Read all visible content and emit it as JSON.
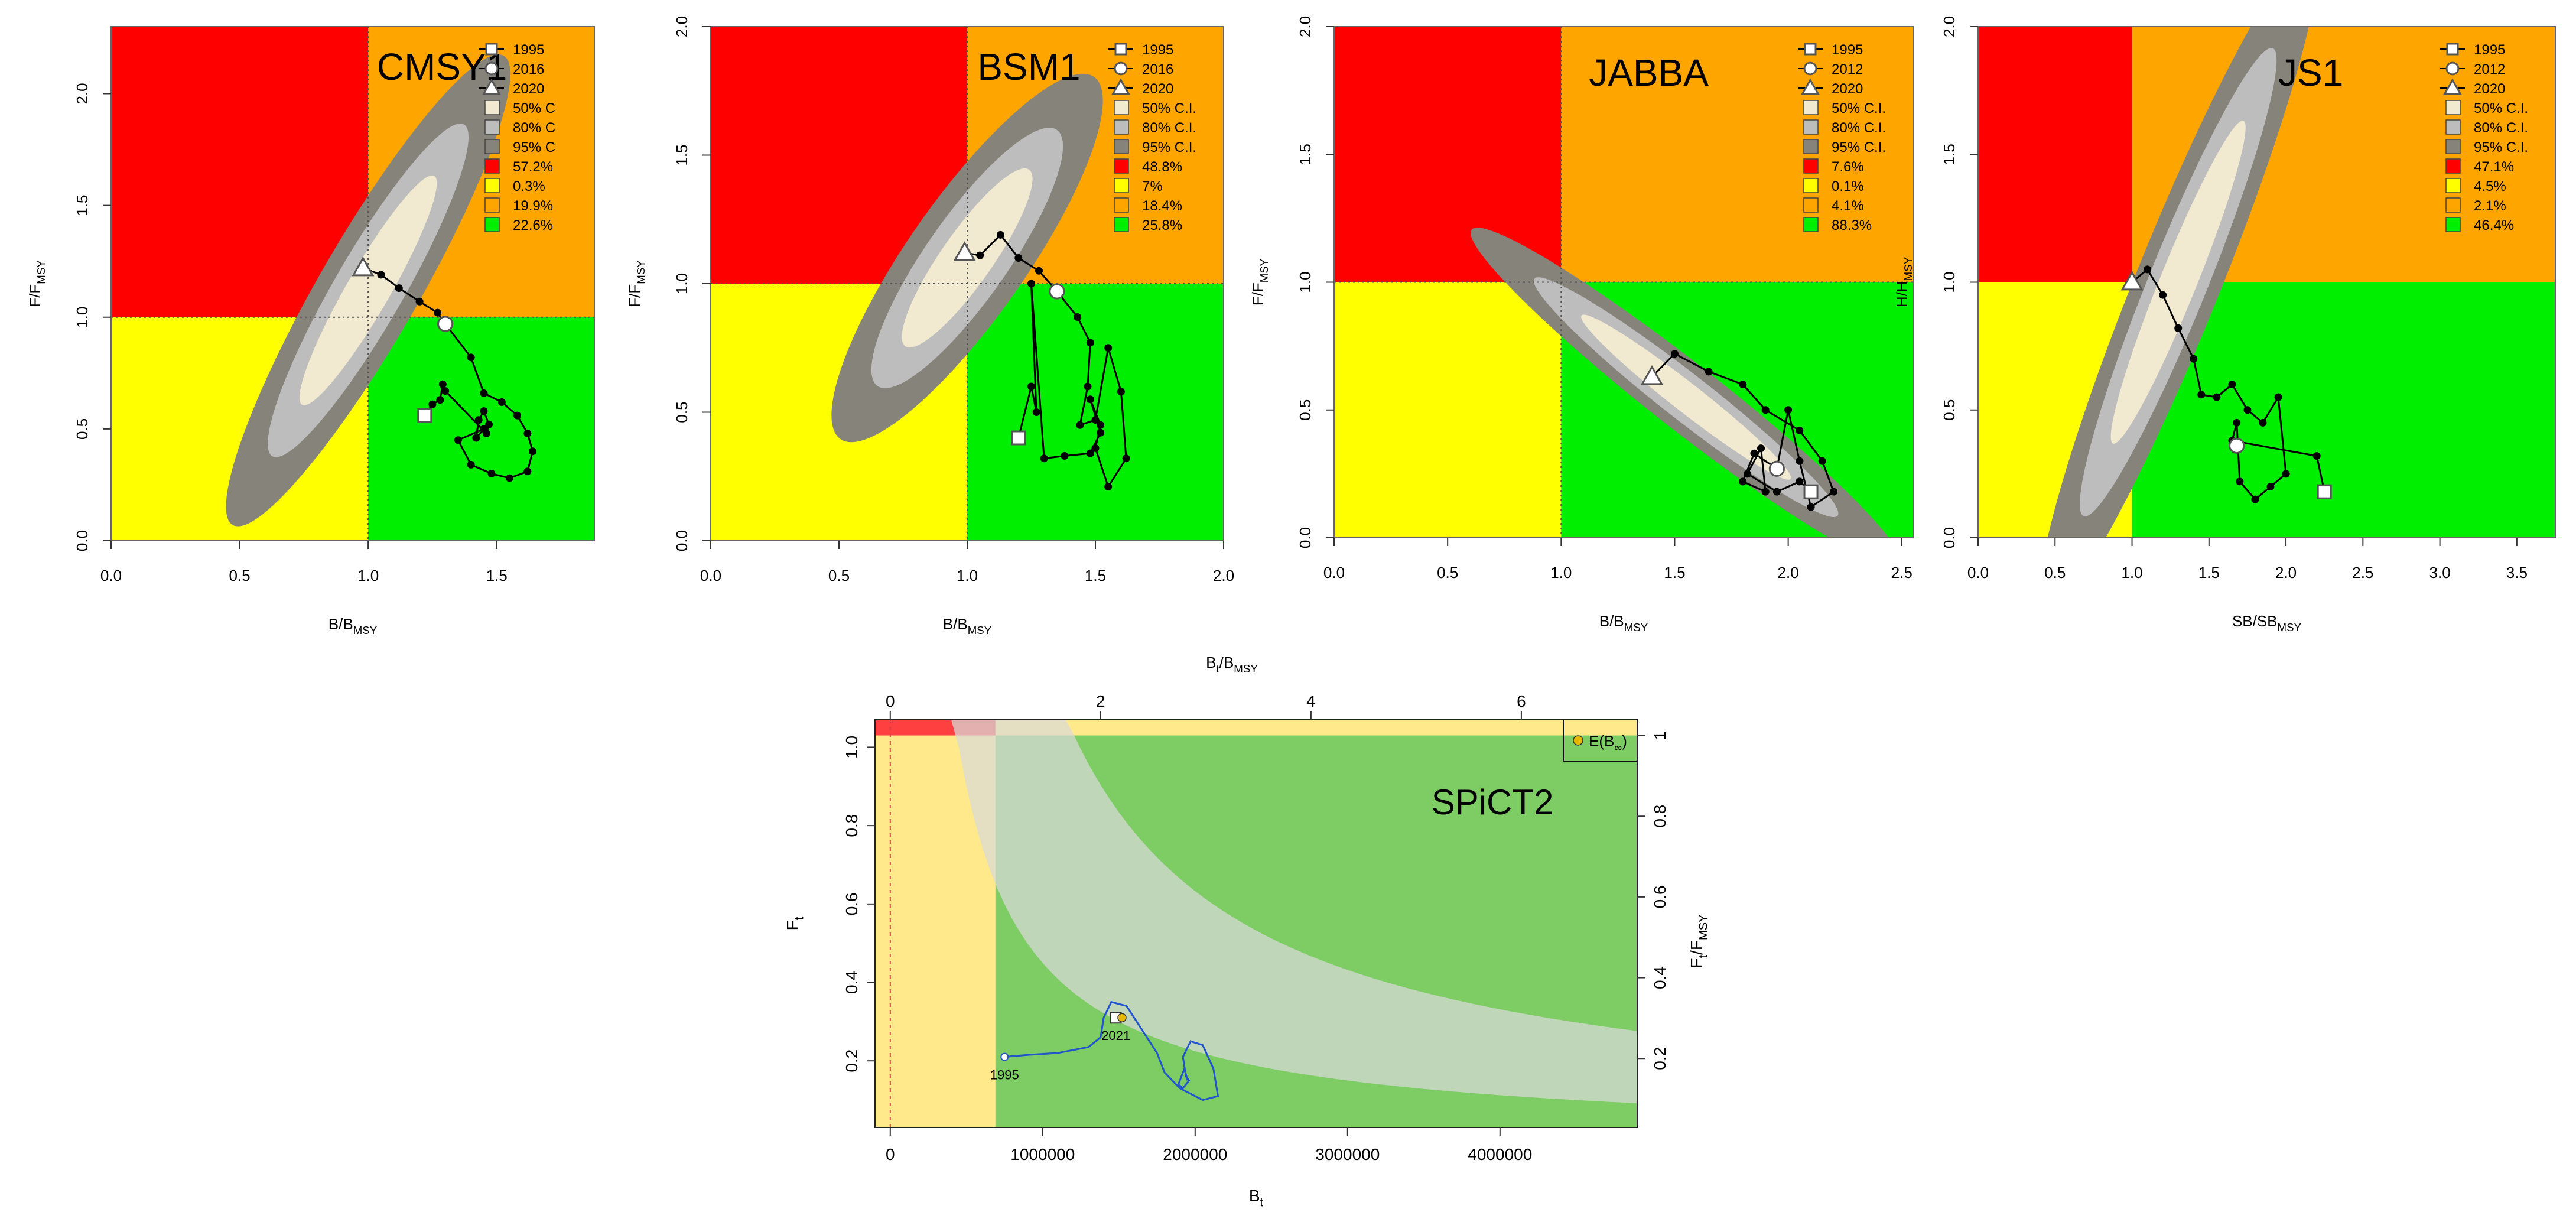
{
  "colors": {
    "red": "#ff0000",
    "yellow": "#ffff00",
    "orange": "#ffa500",
    "green": "#00ee00",
    "ci50": "#f1ead0",
    "ci80": "#bdbdbd",
    "ci95": "#85837a",
    "spict_green": "#7dcc64",
    "spict_yellow": "#ffe98a",
    "spict_red": "#ff4040",
    "spict_band": "#c6d6b8",
    "spict_track": "#2255cc"
  },
  "chart_data": [
    {
      "id": "cmsy1",
      "type": "scatter",
      "title": "CMSY1",
      "xlabel": "B/B",
      "xlabel_sub": "MSY",
      "ylabel": "F/F",
      "ylabel_sub": "MSY",
      "xlim": [
        0,
        1.88
      ],
      "ylim": [
        0,
        2.3
      ],
      "xticks": [
        "0.0",
        "0.5",
        "1.0",
        "1.5"
      ],
      "yticks": [
        "0.0",
        "0.5",
        "1.0",
        "1.5",
        "2.0"
      ],
      "dotted_ref": true,
      "ellipse": {
        "cx": 1.0,
        "cy": 1.12,
        "angle_deg": -60,
        "core_half_axes": [
          0.55,
          0.09
        ]
      },
      "trajectory": [
        [
          1.3,
          0.97
        ],
        [
          1.4,
          0.82
        ],
        [
          1.45,
          0.66
        ],
        [
          1.52,
          0.62
        ],
        [
          1.58,
          0.56
        ],
        [
          1.62,
          0.48
        ],
        [
          1.64,
          0.4
        ],
        [
          1.62,
          0.31
        ],
        [
          1.55,
          0.28
        ],
        [
          1.48,
          0.3
        ],
        [
          1.4,
          0.34
        ],
        [
          1.35,
          0.45
        ],
        [
          1.45,
          0.5
        ],
        [
          1.42,
          0.46
        ],
        [
          1.43,
          0.54
        ],
        [
          1.45,
          0.58
        ],
        [
          1.47,
          0.52
        ],
        [
          1.46,
          0.48
        ],
        [
          1.3,
          0.67
        ],
        [
          1.29,
          0.7
        ],
        [
          1.28,
          0.63
        ],
        [
          1.25,
          0.61
        ],
        [
          1.22,
          0.56
        ]
      ],
      "traj_ext": [
        [
          0.98,
          1.22
        ],
        [
          1.05,
          1.19
        ],
        [
          1.12,
          1.13
        ],
        [
          1.2,
          1.07
        ],
        [
          1.27,
          1.02
        ],
        [
          1.3,
          0.97
        ]
      ],
      "markers": [
        {
          "label": "1995",
          "shape": "square",
          "x": 1.22,
          "y": 0.56
        },
        {
          "label": "2016",
          "shape": "circle",
          "x": 1.3,
          "y": 0.97
        },
        {
          "label": "2020",
          "shape": "triangle",
          "x": 0.98,
          "y": 1.22
        }
      ],
      "legend": [
        {
          "shape": "line-square",
          "text": "1995"
        },
        {
          "shape": "line-circle",
          "text": "2016"
        },
        {
          "shape": "line-triangle",
          "text": "2020"
        },
        {
          "shape": "box",
          "color": "ci50",
          "text": "50% C"
        },
        {
          "shape": "box",
          "color": "ci80",
          "text": "80% C"
        },
        {
          "shape": "box",
          "color": "ci95",
          "text": "95% C"
        },
        {
          "shape": "box",
          "color": "red",
          "text": "57.2%"
        },
        {
          "shape": "box",
          "color": "yellow",
          "text": "0.3%"
        },
        {
          "shape": "box",
          "color": "orange",
          "text": "19.9%"
        },
        {
          "shape": "box",
          "color": "green",
          "text": "22.6%"
        }
      ]
    },
    {
      "id": "bsm1",
      "type": "scatter",
      "title": "BSM1",
      "xlabel": "B/B",
      "xlabel_sub": "MSY",
      "ylabel": "F/F",
      "ylabel_sub": "MSY",
      "xlim": [
        0,
        2.0
      ],
      "ylim": [
        0,
        2.0
      ],
      "xticks": [
        "0.0",
        "0.5",
        "1.0",
        "1.5",
        "2.0"
      ],
      "yticks": [
        "0.0",
        "0.5",
        "1.0",
        "1.5",
        "2.0"
      ],
      "dotted_ref": true,
      "ellipse": {
        "cx": 1.0,
        "cy": 1.1,
        "angle_deg": -55,
        "core_half_axes": [
          0.42,
          0.1
        ]
      },
      "trajectory": [
        [
          1.35,
          0.97
        ],
        [
          1.43,
          0.87
        ],
        [
          1.48,
          0.77
        ],
        [
          1.47,
          0.6
        ],
        [
          1.44,
          0.45
        ],
        [
          1.5,
          0.47
        ],
        [
          1.55,
          0.75
        ],
        [
          1.6,
          0.58
        ],
        [
          1.62,
          0.32
        ],
        [
          1.55,
          0.21
        ],
        [
          1.5,
          0.36
        ],
        [
          1.52,
          0.45
        ],
        [
          1.48,
          0.55
        ],
        [
          1.52,
          0.42
        ],
        [
          1.48,
          0.34
        ],
        [
          1.38,
          0.33
        ],
        [
          1.3,
          0.32
        ],
        [
          1.25,
          1.0
        ],
        [
          1.27,
          0.5
        ],
        [
          1.25,
          0.6
        ],
        [
          1.2,
          0.4
        ]
      ],
      "traj_ext": [
        [
          0.99,
          1.12
        ],
        [
          1.05,
          1.11
        ],
        [
          1.13,
          1.19
        ],
        [
          1.2,
          1.1
        ],
        [
          1.28,
          1.05
        ],
        [
          1.35,
          0.97
        ]
      ],
      "markers": [
        {
          "label": "1995",
          "shape": "square",
          "x": 1.2,
          "y": 0.4
        },
        {
          "label": "2016",
          "shape": "circle",
          "x": 1.35,
          "y": 0.97
        },
        {
          "label": "2020",
          "shape": "triangle",
          "x": 0.99,
          "y": 1.12
        }
      ],
      "legend": [
        {
          "shape": "line-square",
          "text": "1995"
        },
        {
          "shape": "line-circle",
          "text": "2016"
        },
        {
          "shape": "line-triangle",
          "text": "2020"
        },
        {
          "shape": "box",
          "color": "ci50",
          "text": "50% C.I."
        },
        {
          "shape": "box",
          "color": "ci80",
          "text": "80% C.I."
        },
        {
          "shape": "box",
          "color": "ci95",
          "text": "95% C.I."
        },
        {
          "shape": "box",
          "color": "red",
          "text": "48.8%"
        },
        {
          "shape": "box",
          "color": "yellow",
          "text": "7%"
        },
        {
          "shape": "box",
          "color": "orange",
          "text": "18.4%"
        },
        {
          "shape": "box",
          "color": "green",
          "text": "25.8%"
        }
      ]
    },
    {
      "id": "jabba",
      "type": "scatter",
      "title": "JABBA",
      "xlabel": "B/B",
      "xlabel_sub": "MSY",
      "ylabel": "F/F",
      "ylabel_sub": "MSY",
      "xlim": [
        0,
        2.55
      ],
      "ylim": [
        0,
        2.0
      ],
      "xticks": [
        "0.0",
        "0.5",
        "1.0",
        "1.5",
        "2.0",
        "2.5"
      ],
      "yticks": [
        "0.0",
        "0.5",
        "1.0",
        "1.5",
        "2.0"
      ],
      "dotted_ref": true,
      "ellipse": {
        "cx": 1.55,
        "cy": 0.55,
        "angle_deg": 38,
        "core_half_axes": [
          0.55,
          0.06
        ]
      },
      "trajectory": [
        [
          1.4,
          0.63
        ],
        [
          1.5,
          0.72
        ],
        [
          1.65,
          0.65
        ],
        [
          1.8,
          0.6
        ],
        [
          1.9,
          0.5
        ],
        [
          2.05,
          0.42
        ],
        [
          2.15,
          0.3
        ],
        [
          2.2,
          0.18
        ],
        [
          2.1,
          0.12
        ],
        [
          2.05,
          0.3
        ],
        [
          2.0,
          0.5
        ],
        [
          1.95,
          0.27
        ],
        [
          1.85,
          0.33
        ],
        [
          1.8,
          0.22
        ],
        [
          1.9,
          0.18
        ],
        [
          1.88,
          0.35
        ],
        [
          1.82,
          0.25
        ],
        [
          1.95,
          0.18
        ],
        [
          2.05,
          0.22
        ],
        [
          2.1,
          0.18
        ]
      ],
      "traj_ext": [],
      "markers": [
        {
          "label": "1995",
          "shape": "square",
          "x": 2.1,
          "y": 0.18
        },
        {
          "label": "2012",
          "shape": "circle",
          "x": 1.95,
          "y": 0.27
        },
        {
          "label": "2020",
          "shape": "triangle",
          "x": 1.4,
          "y": 0.63
        }
      ],
      "legend": [
        {
          "shape": "line-square",
          "text": "1995"
        },
        {
          "shape": "line-circle",
          "text": "2012"
        },
        {
          "shape": "line-triangle",
          "text": "2020"
        },
        {
          "shape": "box",
          "color": "ci50",
          "text": "50% C.I."
        },
        {
          "shape": "box",
          "color": "ci80",
          "text": "80% C.I."
        },
        {
          "shape": "box",
          "color": "ci95",
          "text": "95% C.I."
        },
        {
          "shape": "box",
          "color": "red",
          "text": "7.6%"
        },
        {
          "shape": "box",
          "color": "yellow",
          "text": "0.1%"
        },
        {
          "shape": "box",
          "color": "orange",
          "text": "4.1%"
        },
        {
          "shape": "box",
          "color": "green",
          "text": "88.3%"
        }
      ]
    },
    {
      "id": "js1",
      "type": "scatter",
      "title": "JS1",
      "xlabel": "SB/SB",
      "xlabel_sub": "MSY",
      "ylabel": "H/H",
      "ylabel_sub": "MSY",
      "xlim": [
        0,
        3.75
      ],
      "ylim": [
        0,
        2.0
      ],
      "xticks": [
        "0.0",
        "0.5",
        "1.0",
        "1.5",
        "2.0",
        "2.5",
        "3.0",
        "3.5"
      ],
      "yticks": [
        "0.0",
        "0.5",
        "1.0",
        "1.5",
        "2.0"
      ],
      "dotted_ref": false,
      "ellipse": {
        "cx": 1.3,
        "cy": 1.0,
        "angle_deg": -68,
        "core_half_axes": [
          0.85,
          0.09
        ]
      },
      "trajectory": [
        [
          1.0,
          1.0
        ],
        [
          1.1,
          1.05
        ],
        [
          1.2,
          0.95
        ],
        [
          1.3,
          0.82
        ],
        [
          1.4,
          0.7
        ],
        [
          1.45,
          0.56
        ],
        [
          1.55,
          0.55
        ],
        [
          1.65,
          0.6
        ],
        [
          1.75,
          0.5
        ],
        [
          1.85,
          0.45
        ],
        [
          1.95,
          0.55
        ],
        [
          2.0,
          0.25
        ],
        [
          1.9,
          0.2
        ],
        [
          1.8,
          0.15
        ],
        [
          1.7,
          0.22
        ],
        [
          1.68,
          0.45
        ],
        [
          1.65,
          0.38
        ],
        [
          2.2,
          0.32
        ],
        [
          2.25,
          0.18
        ]
      ],
      "traj_ext": [],
      "markers": [
        {
          "label": "1995",
          "shape": "square",
          "x": 2.25,
          "y": 0.18
        },
        {
          "label": "2012",
          "shape": "circle",
          "x": 1.68,
          "y": 0.36
        },
        {
          "label": "2020",
          "shape": "triangle",
          "x": 1.0,
          "y": 1.0
        }
      ],
      "legend": [
        {
          "shape": "line-square",
          "text": "1995"
        },
        {
          "shape": "line-circle",
          "text": "2012"
        },
        {
          "shape": "line-triangle",
          "text": "2020"
        },
        {
          "shape": "box",
          "color": "ci50",
          "text": "50% C.I."
        },
        {
          "shape": "box",
          "color": "ci80",
          "text": "80% C.I."
        },
        {
          "shape": "box",
          "color": "ci95",
          "text": "95% C.I."
        },
        {
          "shape": "box",
          "color": "red",
          "text": "47.1%"
        },
        {
          "shape": "box",
          "color": "yellow",
          "text": "4.5%"
        },
        {
          "shape": "box",
          "color": "orange",
          "text": "2.1%"
        },
        {
          "shape": "box",
          "color": "green",
          "text": "46.4%"
        }
      ]
    },
    {
      "id": "spict2",
      "type": "line",
      "title": "SPiCT2",
      "xlabel": "B",
      "xlabel_sub": "t",
      "ylabel": "F",
      "ylabel_sub": "t",
      "top_xlabel": "B",
      "top_xlabel_sub": "t",
      "top_xlabel_mid": "/B",
      "top_xlabel_sub2": "MSY",
      "right_ylabel": "F",
      "right_ylabel_sub": "t",
      "right_ylabel_mid": "/F",
      "right_ylabel_sub2": "MSY",
      "xlim": [
        -100000,
        4900000
      ],
      "ylim": [
        0.03,
        1.07
      ],
      "bmsy": 690000,
      "fmsy": 1.03,
      "xticks": [
        0,
        1000000,
        2000000,
        3000000,
        4000000
      ],
      "xtick_labels": [
        "0",
        "1000000",
        "2000000",
        "3000000",
        "4000000"
      ],
      "yticks": [
        0.2,
        0.4,
        0.6,
        0.8,
        1.0
      ],
      "ytick_labels": [
        "0.2",
        "0.4",
        "0.6",
        "0.8",
        "1.0"
      ],
      "top_ticks": [
        0,
        2,
        4,
        6
      ],
      "top_tick_labels": [
        "0",
        "2",
        "4",
        "6"
      ],
      "right_ticks": [
        0.2,
        0.4,
        0.6,
        0.8,
        1.0
      ],
      "right_tick_labels": [
        "0.2",
        "0.4",
        "0.6",
        "0.8",
        "1"
      ],
      "legend": "E(B",
      "legend_sub": "∞",
      "legend_close": ")",
      "track": [
        [
          750000,
          0.21
        ],
        [
          900000,
          0.215
        ],
        [
          1100000,
          0.22
        ],
        [
          1300000,
          0.235
        ],
        [
          1380000,
          0.26
        ],
        [
          1400000,
          0.31
        ],
        [
          1450000,
          0.35
        ],
        [
          1550000,
          0.34
        ],
        [
          1650000,
          0.28
        ],
        [
          1750000,
          0.22
        ],
        [
          1800000,
          0.17
        ],
        [
          1900000,
          0.13
        ],
        [
          2050000,
          0.1
        ],
        [
          2150000,
          0.11
        ],
        [
          2120000,
          0.18
        ],
        [
          2050000,
          0.24
        ],
        [
          1970000,
          0.25
        ],
        [
          1920000,
          0.21
        ],
        [
          1940000,
          0.16
        ],
        [
          1960000,
          0.15
        ],
        [
          1920000,
          0.13
        ],
        [
          1890000,
          0.14
        ],
        [
          1930000,
          0.18
        ],
        [
          1950000,
          0.15
        ]
      ],
      "points": [
        {
          "label": "1995",
          "x": 750000,
          "y": 0.21
        },
        {
          "label": "2021",
          "x": 1480000,
          "y": 0.31
        }
      ],
      "expected": {
        "x": 1520000,
        "y": 0.31
      },
      "dashed_x": 0
    }
  ]
}
